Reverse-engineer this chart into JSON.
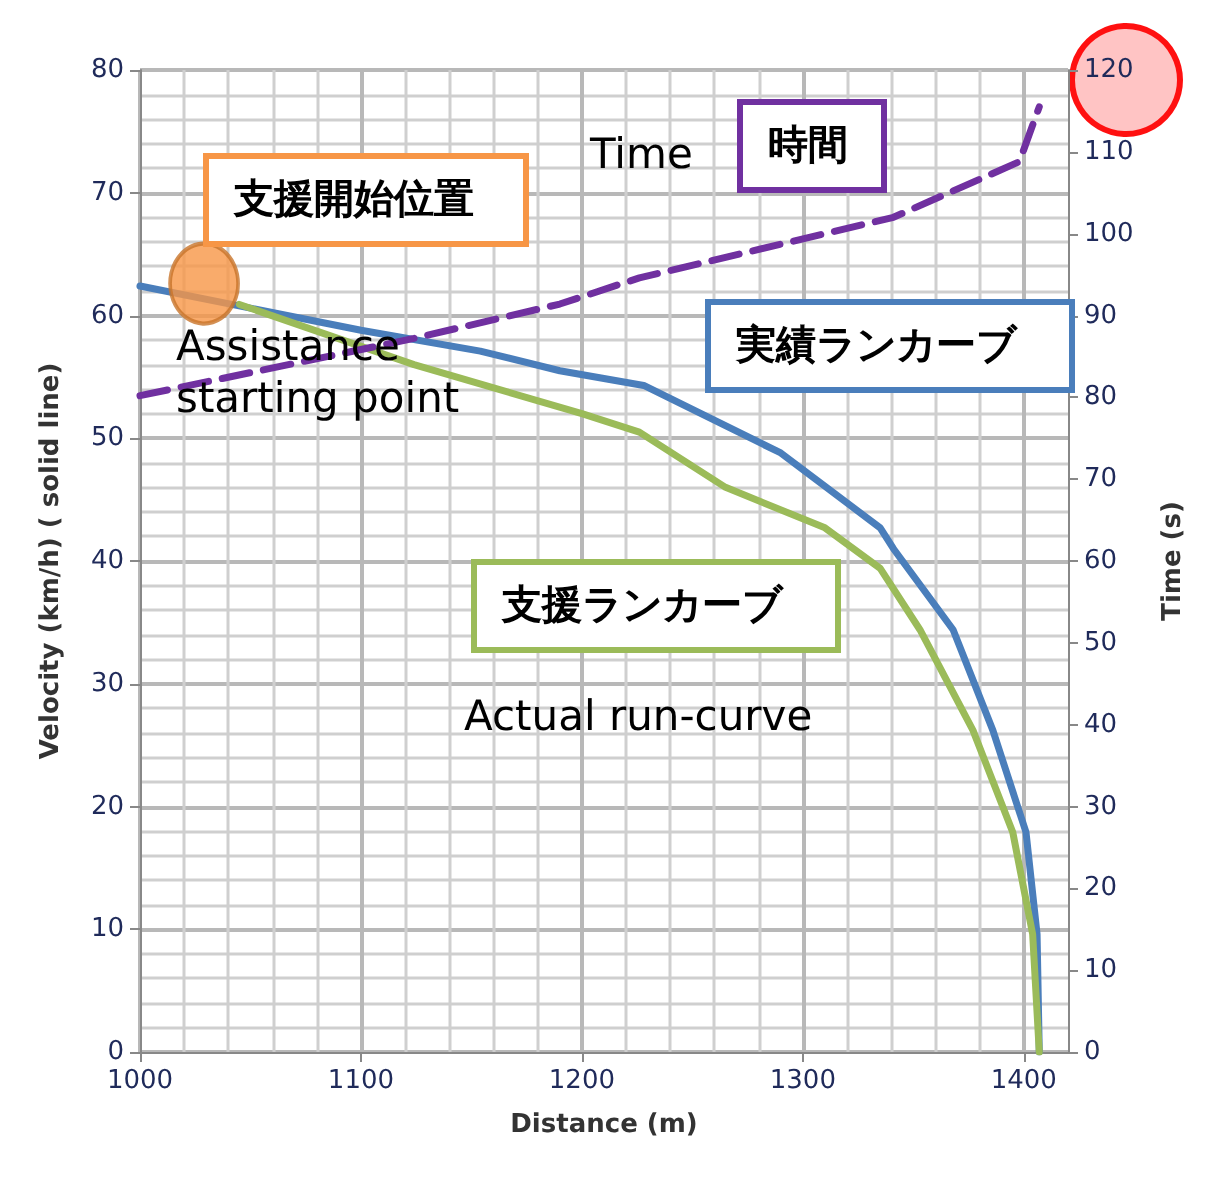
{
  "chart_data": {
    "type": "line",
    "xlabel": "Distance (m)",
    "ylabel": "Velocity (km/h) ( solid line)",
    "y2label": "Time (s)",
    "xlim": [
      1000,
      1420
    ],
    "xticks": [
      1000,
      1100,
      1200,
      1300,
      1400
    ],
    "ylim": [
      0,
      80
    ],
    "yticks": [
      0,
      10,
      20,
      30,
      40,
      50,
      60,
      70,
      80
    ],
    "y2lim": [
      0,
      120
    ],
    "y2ticks": [
      0,
      10,
      20,
      30,
      40,
      50,
      60,
      70,
      80,
      90,
      100,
      110,
      120
    ],
    "grid": true,
    "legend": false,
    "marker": "none",
    "annotations": [
      "支援開始位置",
      "Assistance starting point",
      "Time",
      "Actual run-curve"
    ],
    "series": [
      {
        "name": "実績ランカーブ",
        "color": "#4a7ebb",
        "x": [
          1000,
          1100,
          1154,
          1190,
          1228,
          1290,
          1335,
          1341,
          1368,
          1386,
          1401,
          1406,
          1407
        ],
        "values": [
          62.4,
          58.8,
          57.1,
          55.5,
          54.3,
          48.8,
          42.7,
          41,
          34.4,
          26.2,
          17.9,
          9.6,
          0
        ]
      },
      {
        "name": "支援ランカーブ",
        "color": "#9bbb59",
        "x": [
          1045,
          1124,
          1200,
          1226,
          1265,
          1310,
          1335,
          1353,
          1377,
          1395,
          1404,
          1407
        ],
        "values": [
          60.9,
          56,
          52,
          50.5,
          46,
          42.7,
          39.4,
          34.4,
          26.2,
          17.9,
          9.6,
          0
        ]
      },
      {
        "name": "時間",
        "color": "#7030a0",
        "axis": "y2",
        "line_style": "dashed",
        "x": [
          1000,
          1124,
          1190,
          1226,
          1265,
          1341,
          1398,
          1407
        ],
        "values": [
          80.2,
          87.2,
          91.4,
          94.6,
          97.1,
          102,
          108.8,
          115.5
        ]
      },
      {
        "type": "scatter",
        "color": "#f79646",
        "marker": "circle",
        "x": [
          1029
        ],
        "values": [
          62.6
        ]
      }
    ]
  }
}
